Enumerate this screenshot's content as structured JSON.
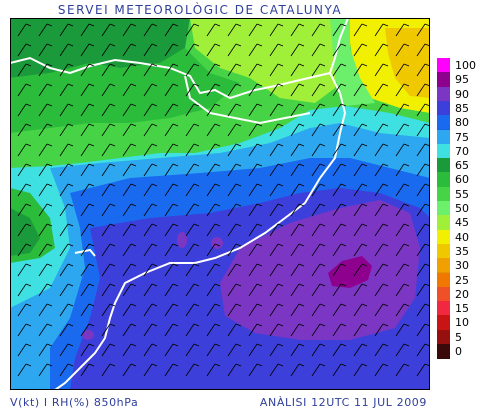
{
  "header": {
    "title": "SERVEI METEOROLÒGIC DE CATALUNYA"
  },
  "footer": {
    "variables": "V(kt) I RH(%) 850hPa",
    "analysis": "ANÀLISI 12UTC 11 JUL 2009"
  },
  "legend": {
    "ticks": [
      "100",
      "95",
      "90",
      "85",
      "80",
      "75",
      "70",
      "65",
      "60",
      "55",
      "50",
      "45",
      "40",
      "35",
      "30",
      "25",
      "20",
      "15",
      "10",
      "5",
      "0"
    ],
    "colors": [
      "#ff00ff",
      "#8e008e",
      "#7b37c4",
      "#3c3fd9",
      "#1a6af0",
      "#2da8f0",
      "#3ee0e2",
      "#1a9a3a",
      "#2cbc3c",
      "#46d446",
      "#6cf06c",
      "#a0f03a",
      "#f0f000",
      "#f0c800",
      "#f0a000",
      "#f07800",
      "#f05028",
      "#f02840",
      "#c81414",
      "#961010",
      "#3a0a0a"
    ]
  },
  "map": {
    "region": "Catalunya",
    "overlays": [
      "wind-barbs",
      "relative-humidity",
      "coastline",
      "borders"
    ]
  }
}
